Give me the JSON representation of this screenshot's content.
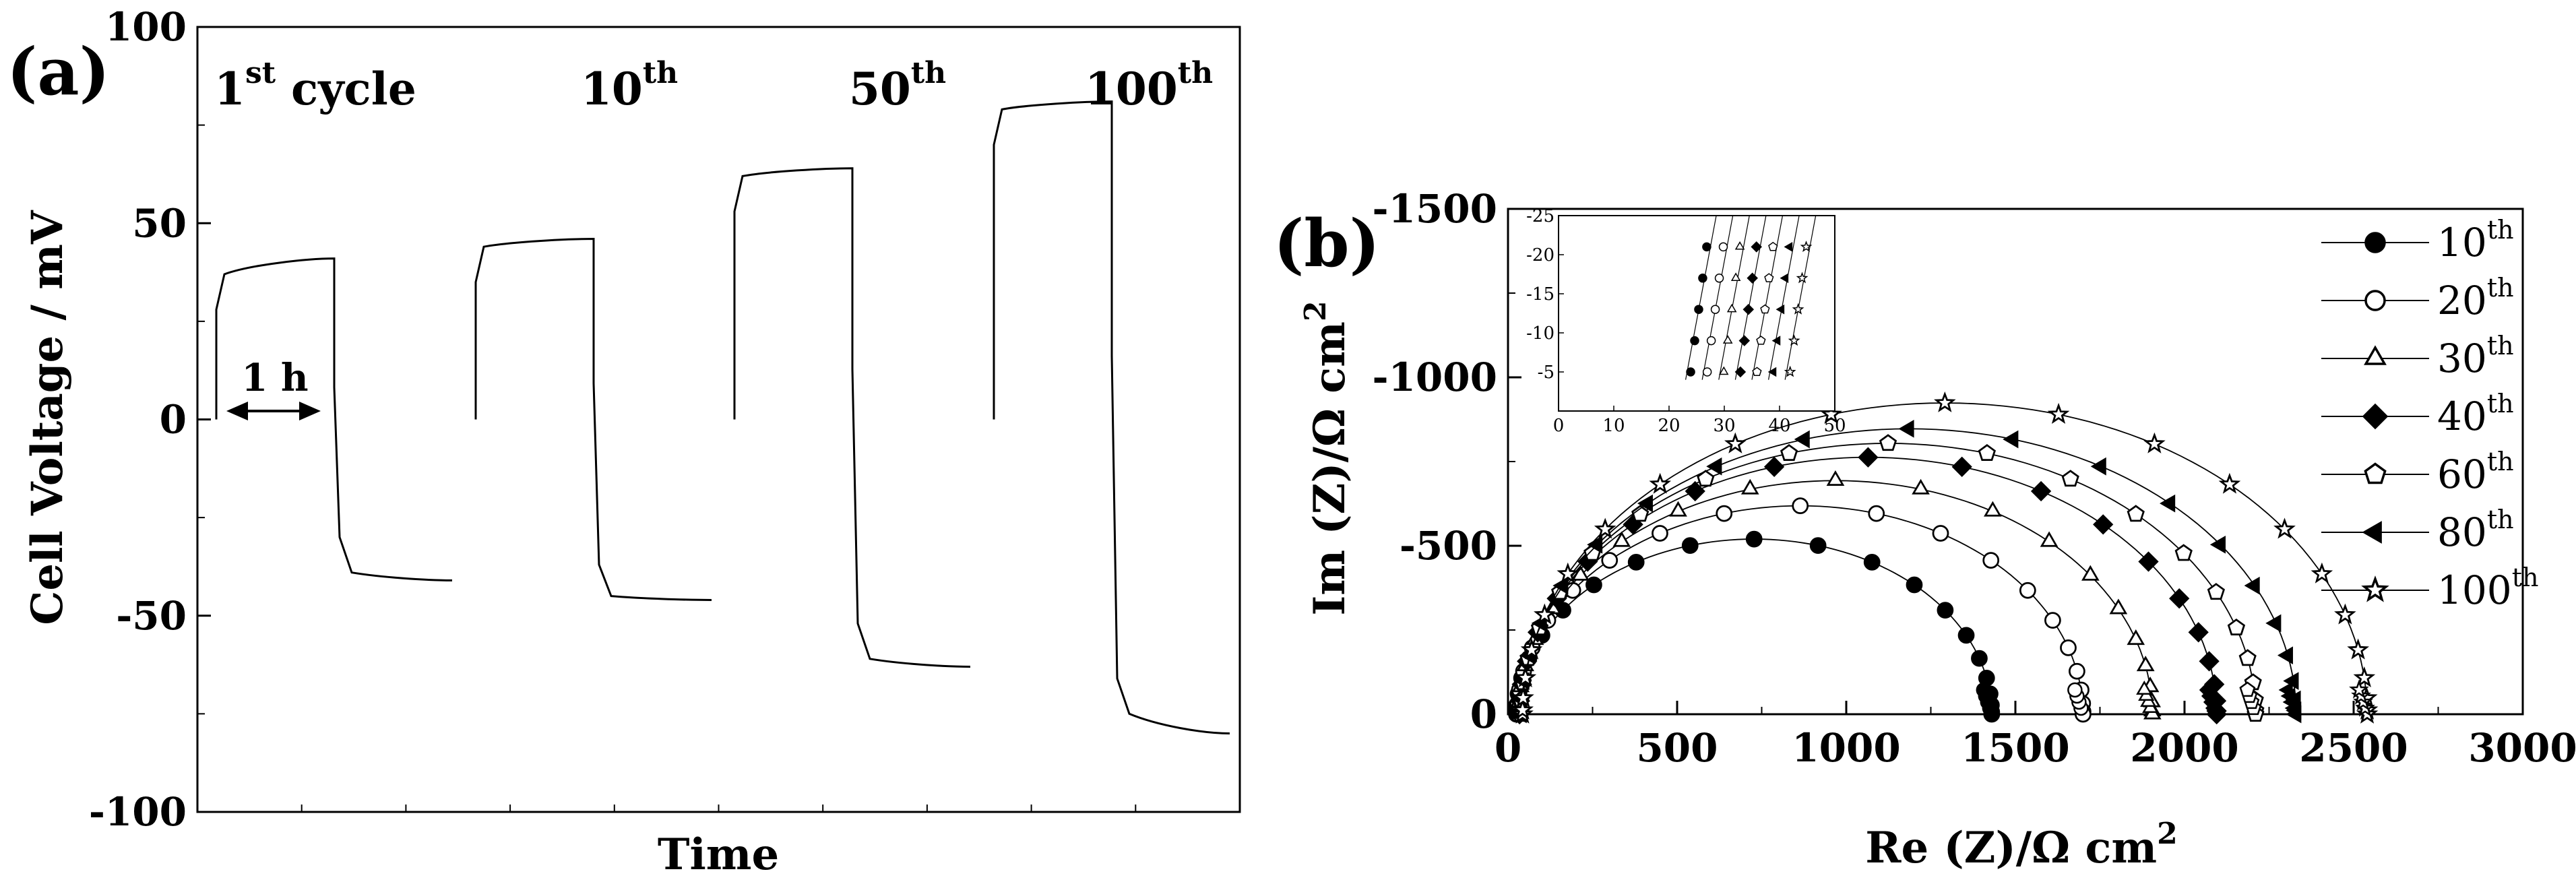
{
  "chart_data": [
    {
      "panel": "(a)",
      "type": "line",
      "xlabel": "Time",
      "ylabel": "Cell Voltage / mV",
      "ylim": [
        -100,
        100
      ],
      "y_ticks": [
        "100",
        "50",
        "0",
        "-50",
        "-100"
      ],
      "x_ticks_labeled": false,
      "annotation": "1 h",
      "series": [
        {
          "label_main": "1",
          "label_sup": "st",
          "label_suffix": " cycle",
          "jump": 28,
          "charge_start": 37,
          "charge_end": 41,
          "drop": -30,
          "discharge_start": -39,
          "discharge_end": -41
        },
        {
          "label_main": "10",
          "label_sup": "th",
          "label_suffix": "",
          "jump": 35,
          "charge_start": 44,
          "charge_end": 46,
          "drop": -37,
          "discharge_start": -45,
          "discharge_end": -46
        },
        {
          "label_main": "50",
          "label_sup": "th",
          "label_suffix": "",
          "jump": 53,
          "charge_start": 62,
          "charge_end": 64,
          "drop": -52,
          "discharge_start": -61,
          "discharge_end": -63
        },
        {
          "label_main": "100",
          "label_sup": "th",
          "label_suffix": "",
          "jump": 70,
          "charge_start": 79,
          "charge_end": 81,
          "drop": -66,
          "discharge_start": -75,
          "discharge_end": -80
        }
      ]
    },
    {
      "panel": "(b)",
      "type": "scatter",
      "xlabel": "Re (Z)/Ω cm",
      "xlabel_sup": "2",
      "ylabel": "Im (Z)/Ω cm",
      "ylabel_sup": "2",
      "xlim": [
        0,
        3000
      ],
      "ylim": [
        0,
        -1500
      ],
      "x_ticks": [
        "0",
        "500",
        "1000",
        "1500",
        "2000",
        "2500",
        "3000"
      ],
      "y_ticks": [
        "0",
        "-500",
        "-1000",
        "-1500"
      ],
      "legend_position": "right",
      "series": [
        {
          "label_main": "10",
          "label_sup": "th",
          "marker": "circle",
          "filled": true,
          "r_start": 25,
          "r_end": 1430
        },
        {
          "label_main": "20",
          "label_sup": "th",
          "marker": "circle",
          "filled": false,
          "r_start": 28,
          "r_end": 1700
        },
        {
          "label_main": "30",
          "label_sup": "th",
          "marker": "triangle",
          "filled": false,
          "r_start": 31,
          "r_end": 1905
        },
        {
          "label_main": "40",
          "label_sup": "th",
          "marker": "diamond",
          "filled": true,
          "r_start": 34,
          "r_end": 2095
        },
        {
          "label_main": "60",
          "label_sup": "th",
          "marker": "pentagon",
          "filled": false,
          "r_start": 37,
          "r_end": 2210
        },
        {
          "label_main": "80",
          "label_sup": "th",
          "marker": "triangle-left",
          "filled": true,
          "r_start": 40,
          "r_end": 2330
        },
        {
          "label_main": "100",
          "label_sup": "th",
          "marker": "star",
          "filled": false,
          "r_start": 43,
          "r_end": 2540
        }
      ],
      "inset": {
        "xlim": [
          0,
          50
        ],
        "ylim": [
          0,
          -25
        ],
        "x_ticks": [
          "0",
          "10",
          "20",
          "30",
          "40",
          "50"
        ],
        "y_ticks": [
          "-25",
          "-20",
          "-15",
          "-10",
          "-5"
        ]
      }
    }
  ]
}
